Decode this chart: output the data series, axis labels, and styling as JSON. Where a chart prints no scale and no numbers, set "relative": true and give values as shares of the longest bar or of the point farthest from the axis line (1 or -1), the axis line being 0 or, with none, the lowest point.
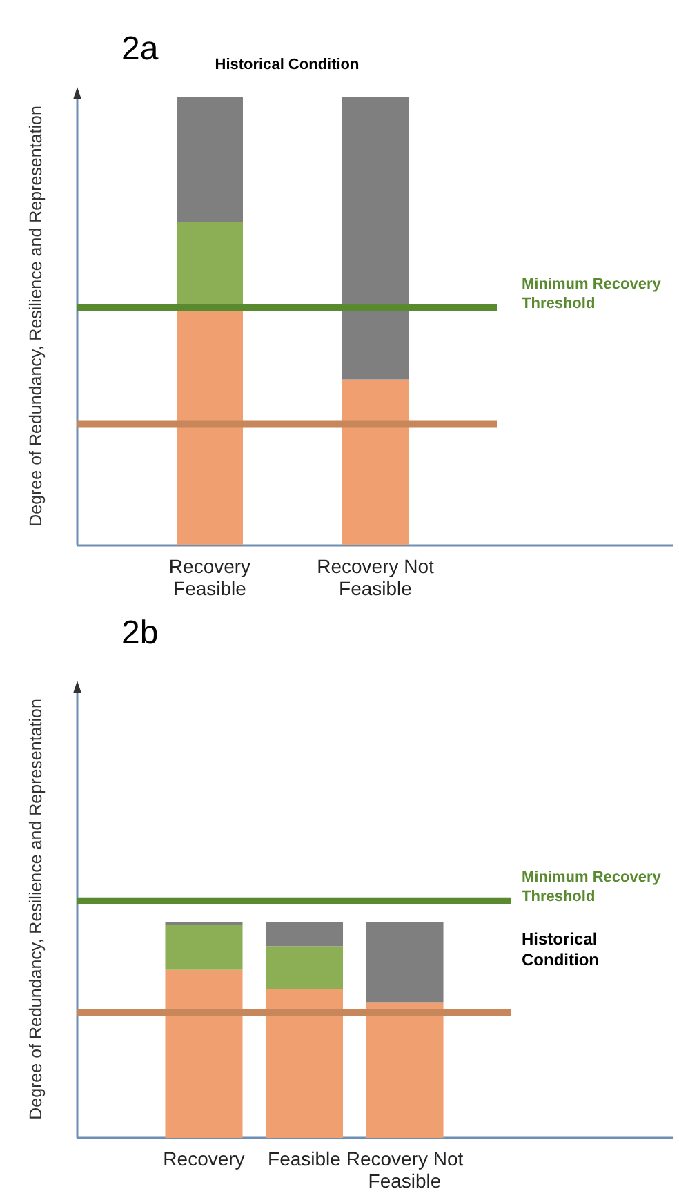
{
  "chart_data": [
    {
      "type": "bar",
      "title": "2a",
      "ylabel": "Degree of Redundancy, Resilience and Representation",
      "categories": [
        "Recovery Feasible",
        "Recovery Not Feasible"
      ],
      "stacked": true,
      "relative": true,
      "series": [
        {
          "color": "#f0a070",
          "values": [
            0.53,
            0.37
          ]
        },
        {
          "color": "#8caf55",
          "values": [
            0.19,
            null
          ]
        },
        {
          "color": "#7f7f7f",
          "values": [
            0.28,
            0.63
          ]
        }
      ],
      "ref_lines": [
        {
          "axis": "y",
          "value": 0.53,
          "label": "Minimum Recovery Threshold",
          "color": "#5a8a30"
        },
        {
          "axis": "y",
          "value": 0.27,
          "color": "#c8875a"
        }
      ],
      "annotations": [
        "Historical Condition"
      ]
    },
    {
      "type": "bar",
      "title": "2b",
      "ylabel": "Degree of Redundancy, Resilience and Representation",
      "categories": [
        "Recovery",
        "Feasible",
        "Recovery Not Feasible"
      ],
      "stacked": true,
      "relative": true,
      "series": [
        {
          "color": "#f0a070",
          "values": [
            0.78,
            0.69,
            0.63
          ]
        },
        {
          "color": "#8caf55",
          "values": [
            0.21,
            0.2,
            null
          ]
        },
        {
          "color": "#7f7f7f",
          "values": [
            0.01,
            0.11,
            0.37
          ]
        }
      ],
      "ref_lines": [
        {
          "axis": "y",
          "value": 1.1,
          "label": "Minimum Recovery Threshold",
          "color": "#5a8a30"
        },
        {
          "axis": "y",
          "value": 0.58,
          "color": "#c8875a"
        }
      ],
      "annotations": [
        "Historical Condition"
      ]
    }
  ]
}
